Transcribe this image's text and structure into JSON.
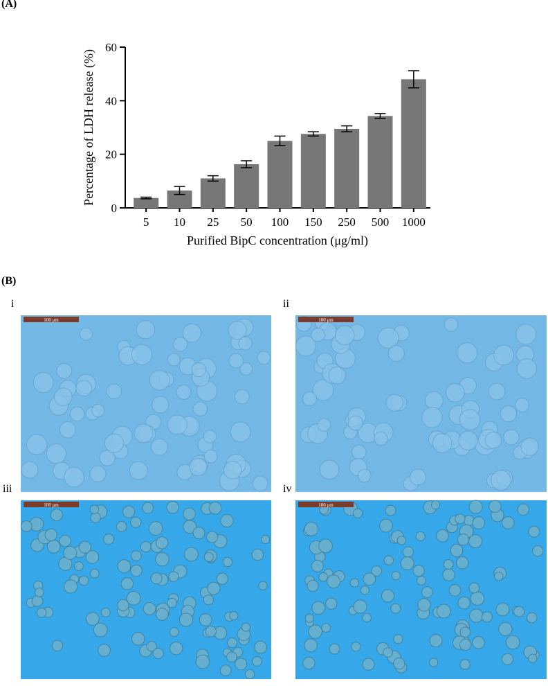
{
  "figure_labels": {
    "a": "(A)",
    "b": "(B)"
  },
  "chart_data": {
    "type": "bar",
    "categories": [
      "5",
      "10",
      "25",
      "50",
      "100",
      "150",
      "250",
      "500",
      "1000"
    ],
    "values": [
      3.7,
      6.5,
      11,
      16.3,
      25,
      27.6,
      29.5,
      34.3,
      48
    ],
    "errors": [
      0.3,
      1.5,
      1,
      1.3,
      1.8,
      0.8,
      1.1,
      0.9,
      3.2
    ],
    "color": "#777777",
    "xlabel": "Purified BipC concentration (μg/ml)",
    "ylabel": "Percentage of LDH release (%)",
    "ylim": [
      0,
      60
    ],
    "yticks": [
      0,
      20,
      40,
      60
    ]
  },
  "panels": [
    {
      "label": "i",
      "scale_bar": "100 μm"
    },
    {
      "label": "ii",
      "scale_bar": "100 μm"
    },
    {
      "label": "iii",
      "scale_bar": "100 μm"
    },
    {
      "label": "iv",
      "scale_bar": "100 μm"
    }
  ]
}
